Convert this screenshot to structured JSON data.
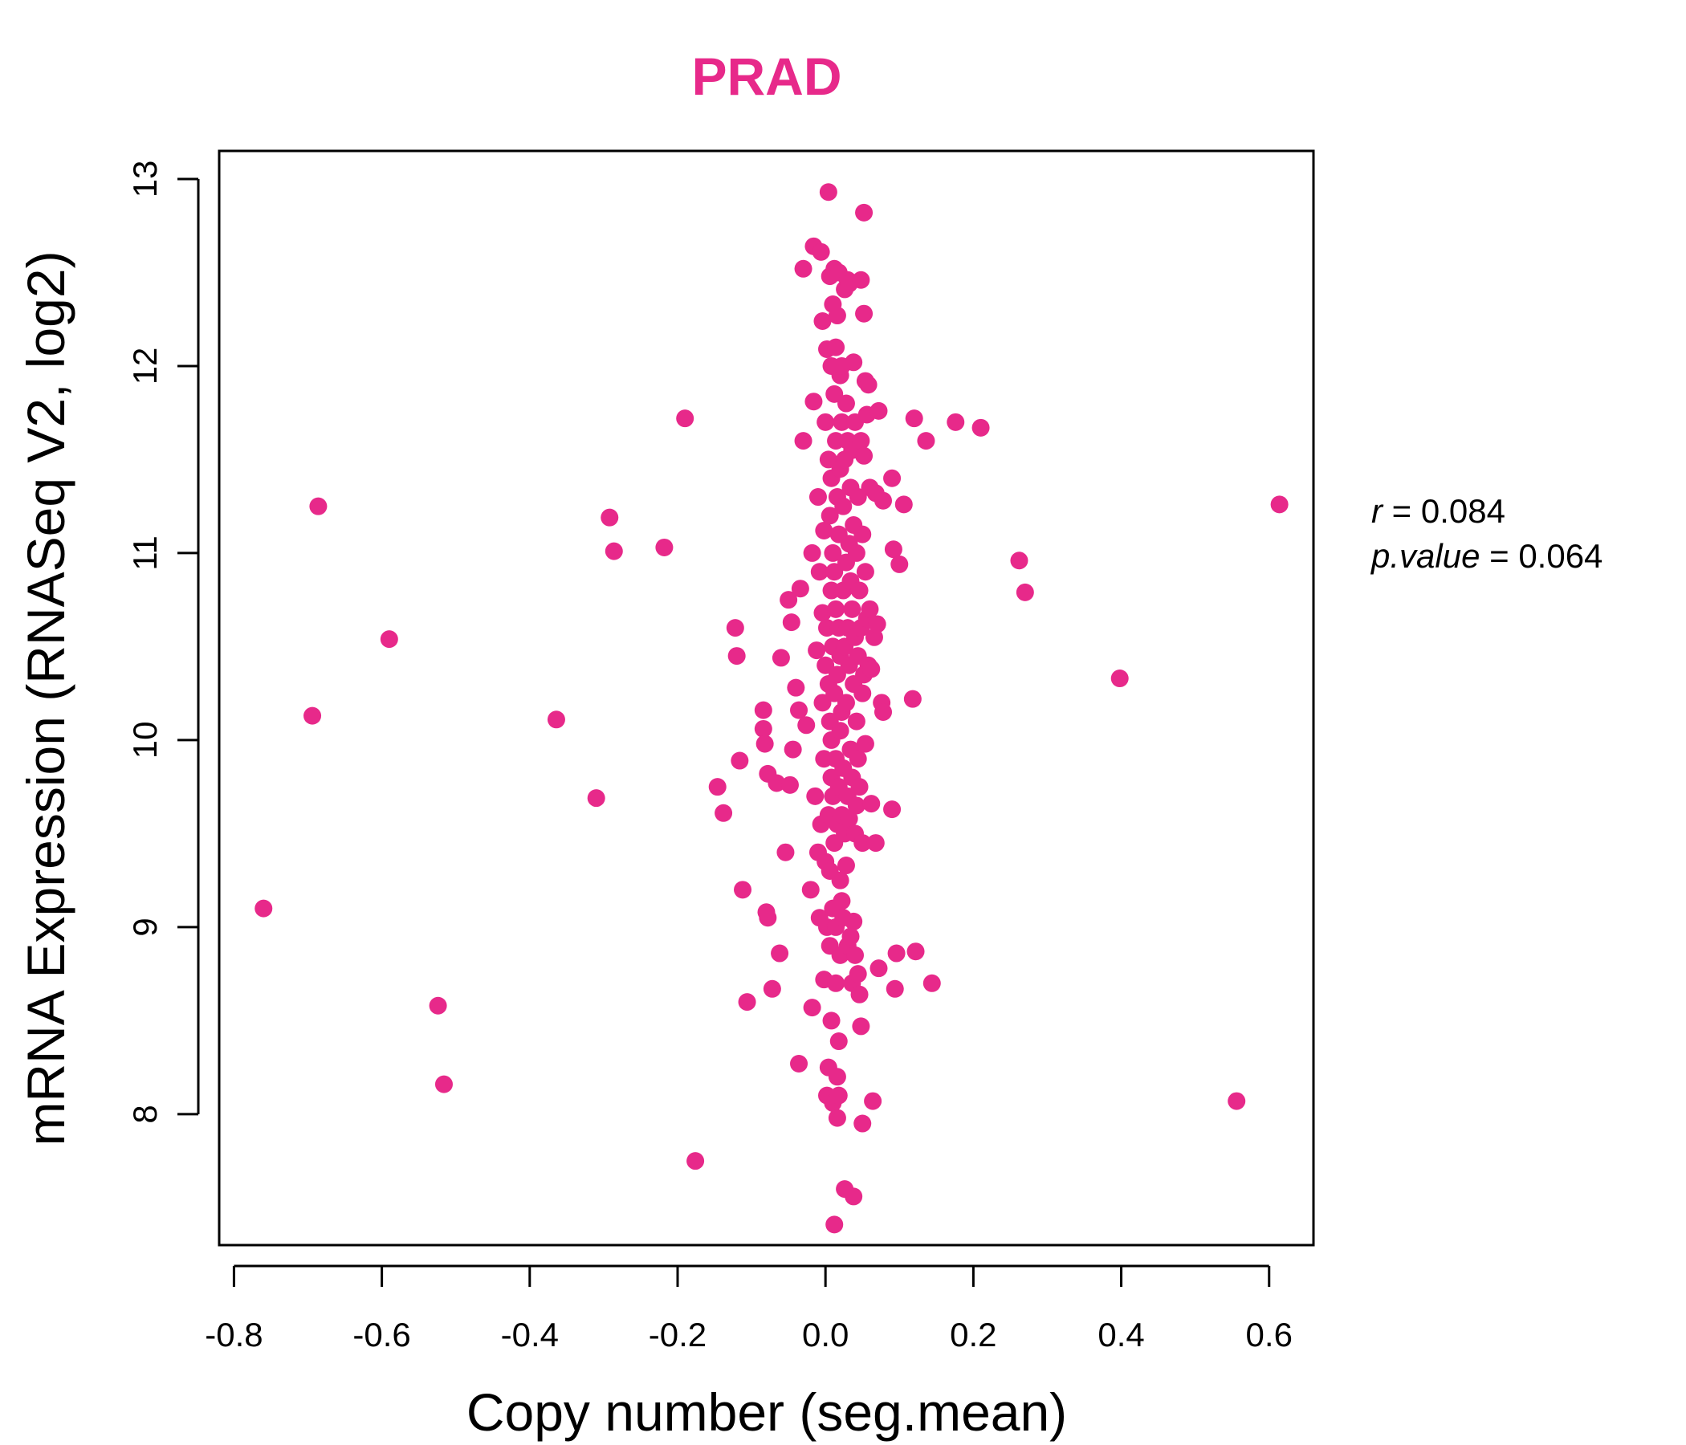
{
  "chart_data": {
    "type": "scatter",
    "title": "PRAD",
    "xlabel": "Copy number (seg.mean)",
    "ylabel": "mRNA Expression (RNASeq V2, log2)",
    "xlim": [
      -0.82,
      0.66
    ],
    "ylim": [
      7.3,
      13.15
    ],
    "xticks": [
      -0.8,
      -0.6,
      -0.4,
      -0.2,
      0.0,
      0.2,
      0.4,
      0.6
    ],
    "xtick_labels": [
      "-0.8",
      "-0.6",
      "-0.4",
      "-0.2",
      "0.0",
      "0.2",
      "0.4",
      "0.6"
    ],
    "yticks": [
      8,
      9,
      10,
      11,
      12,
      13
    ],
    "ytick_labels": [
      "8",
      "9",
      "10",
      "11",
      "12",
      "13"
    ],
    "color": "#e7298a",
    "stats": {
      "r_label": "r",
      "r_value": "0.084",
      "p_label": "p.value",
      "p_value": "0.064"
    },
    "points": [
      [
        -0.76,
        9.1
      ],
      [
        -0.694,
        10.13
      ],
      [
        -0.686,
        11.25
      ],
      [
        -0.59,
        10.54
      ],
      [
        -0.524,
        8.58
      ],
      [
        -0.516,
        8.16
      ],
      [
        -0.364,
        10.11
      ],
      [
        -0.31,
        9.69
      ],
      [
        -0.292,
        11.19
      ],
      [
        -0.286,
        11.01
      ],
      [
        -0.218,
        11.03
      ],
      [
        -0.19,
        11.72
      ],
      [
        -0.176,
        7.75
      ],
      [
        -0.146,
        9.75
      ],
      [
        -0.138,
        9.61
      ],
      [
        -0.122,
        10.6
      ],
      [
        -0.12,
        10.45
      ],
      [
        -0.116,
        9.89
      ],
      [
        -0.112,
        9.2
      ],
      [
        -0.106,
        8.6
      ],
      [
        -0.084,
        10.16
      ],
      [
        -0.084,
        10.06
      ],
      [
        -0.082,
        9.98
      ],
      [
        -0.08,
        9.08
      ],
      [
        -0.078,
        9.05
      ],
      [
        -0.078,
        9.82
      ],
      [
        -0.072,
        8.67
      ],
      [
        -0.066,
        9.77
      ],
      [
        -0.062,
        8.86
      ],
      [
        -0.06,
        10.44
      ],
      [
        -0.054,
        9.4
      ],
      [
        -0.05,
        10.75
      ],
      [
        -0.048,
        9.76
      ],
      [
        -0.046,
        10.63
      ],
      [
        -0.044,
        9.95
      ],
      [
        -0.04,
        10.28
      ],
      [
        -0.036,
        10.16
      ],
      [
        -0.036,
        8.27
      ],
      [
        -0.034,
        10.81
      ],
      [
        -0.03,
        11.6
      ],
      [
        -0.03,
        12.52
      ],
      [
        -0.026,
        10.08
      ],
      [
        -0.02,
        9.2
      ],
      [
        -0.018,
        8.57
      ],
      [
        -0.018,
        11.0
      ],
      [
        -0.016,
        12.64
      ],
      [
        -0.016,
        11.81
      ],
      [
        -0.014,
        9.7
      ],
      [
        -0.012,
        10.48
      ],
      [
        -0.01,
        11.3
      ],
      [
        -0.01,
        9.4
      ],
      [
        -0.008,
        10.9
      ],
      [
        -0.008,
        9.05
      ],
      [
        -0.006,
        12.61
      ],
      [
        -0.006,
        9.55
      ],
      [
        -0.004,
        10.68
      ],
      [
        -0.004,
        12.24
      ],
      [
        -0.004,
        10.2
      ],
      [
        -0.002,
        11.12
      ],
      [
        -0.002,
        9.9
      ],
      [
        -0.002,
        8.72
      ],
      [
        0.0,
        11.7
      ],
      [
        0.0,
        9.35
      ],
      [
        0.0,
        10.4
      ],
      [
        0.002,
        12.09
      ],
      [
        0.002,
        10.6
      ],
      [
        0.002,
        9.0
      ],
      [
        0.002,
        8.1
      ],
      [
        0.004,
        12.93
      ],
      [
        0.004,
        11.5
      ],
      [
        0.004,
        10.3
      ],
      [
        0.004,
        9.6
      ],
      [
        0.004,
        8.25
      ],
      [
        0.006,
        12.48
      ],
      [
        0.006,
        11.2
      ],
      [
        0.006,
        10.1
      ],
      [
        0.006,
        9.3
      ],
      [
        0.006,
        8.9
      ],
      [
        0.008,
        12.0
      ],
      [
        0.008,
        11.4
      ],
      [
        0.008,
        10.8
      ],
      [
        0.008,
        10.0
      ],
      [
        0.008,
        9.8
      ],
      [
        0.008,
        8.5
      ],
      [
        0.01,
        12.33
      ],
      [
        0.01,
        11.0
      ],
      [
        0.01,
        10.5
      ],
      [
        0.01,
        9.7
      ],
      [
        0.01,
        9.1
      ],
      [
        0.01,
        8.06
      ],
      [
        0.012,
        12.52
      ],
      [
        0.012,
        11.85
      ],
      [
        0.012,
        10.9
      ],
      [
        0.012,
        10.25
      ],
      [
        0.012,
        9.45
      ],
      [
        0.012,
        7.41
      ],
      [
        0.014,
        12.1
      ],
      [
        0.014,
        11.6
      ],
      [
        0.014,
        10.7
      ],
      [
        0.014,
        9.9
      ],
      [
        0.014,
        9.0
      ],
      [
        0.014,
        8.7
      ],
      [
        0.016,
        12.27
      ],
      [
        0.016,
        11.3
      ],
      [
        0.016,
        10.35
      ],
      [
        0.016,
        9.55
      ],
      [
        0.016,
        8.2
      ],
      [
        0.016,
        7.98
      ],
      [
        0.018,
        12.5
      ],
      [
        0.018,
        11.1
      ],
      [
        0.018,
        10.6
      ],
      [
        0.018,
        9.75
      ],
      [
        0.018,
        8.39
      ],
      [
        0.018,
        8.1
      ],
      [
        0.02,
        11.95
      ],
      [
        0.02,
        11.45
      ],
      [
        0.02,
        10.45
      ],
      [
        0.02,
        10.05
      ],
      [
        0.02,
        9.25
      ],
      [
        0.02,
        8.85
      ],
      [
        0.022,
        12.0
      ],
      [
        0.022,
        11.7
      ],
      [
        0.022,
        10.15
      ],
      [
        0.022,
        9.6
      ],
      [
        0.022,
        9.14
      ],
      [
        0.024,
        11.25
      ],
      [
        0.024,
        10.8
      ],
      [
        0.024,
        9.85
      ],
      [
        0.024,
        9.05
      ],
      [
        0.026,
        12.41
      ],
      [
        0.026,
        11.5
      ],
      [
        0.026,
        10.5
      ],
      [
        0.026,
        9.5
      ],
      [
        0.026,
        7.6
      ],
      [
        0.028,
        11.8
      ],
      [
        0.028,
        10.95
      ],
      [
        0.028,
        10.2
      ],
      [
        0.028,
        9.33
      ],
      [
        0.03,
        12.46
      ],
      [
        0.03,
        11.6
      ],
      [
        0.03,
        10.6
      ],
      [
        0.03,
        9.7
      ],
      [
        0.03,
        8.9
      ],
      [
        0.032,
        12.44
      ],
      [
        0.032,
        11.05
      ],
      [
        0.032,
        10.4
      ],
      [
        0.032,
        9.58
      ],
      [
        0.034,
        11.35
      ],
      [
        0.034,
        10.85
      ],
      [
        0.034,
        9.95
      ],
      [
        0.034,
        8.95
      ],
      [
        0.036,
        11.55
      ],
      [
        0.036,
        10.7
      ],
      [
        0.036,
        9.8
      ],
      [
        0.036,
        8.7
      ],
      [
        0.038,
        12.02
      ],
      [
        0.038,
        11.15
      ],
      [
        0.038,
        10.3
      ],
      [
        0.038,
        9.03
      ],
      [
        0.038,
        7.56
      ],
      [
        0.04,
        11.7
      ],
      [
        0.04,
        10.55
      ],
      [
        0.04,
        9.5
      ],
      [
        0.04,
        8.85
      ],
      [
        0.042,
        11.0
      ],
      [
        0.042,
        10.1
      ],
      [
        0.042,
        9.65
      ],
      [
        0.044,
        11.3
      ],
      [
        0.044,
        10.45
      ],
      [
        0.044,
        9.9
      ],
      [
        0.044,
        8.75
      ],
      [
        0.046,
        10.8
      ],
      [
        0.046,
        9.75
      ],
      [
        0.046,
        8.64
      ],
      [
        0.048,
        12.46
      ],
      [
        0.048,
        11.6
      ],
      [
        0.048,
        10.6
      ],
      [
        0.048,
        8.47
      ],
      [
        0.05,
        11.1
      ],
      [
        0.05,
        10.25
      ],
      [
        0.05,
        9.45
      ],
      [
        0.05,
        7.95
      ],
      [
        0.052,
        12.82
      ],
      [
        0.052,
        12.28
      ],
      [
        0.052,
        11.52
      ],
      [
        0.052,
        10.35
      ],
      [
        0.054,
        11.92
      ],
      [
        0.054,
        10.9
      ],
      [
        0.054,
        9.98
      ],
      [
        0.056,
        11.74
      ],
      [
        0.056,
        10.65
      ],
      [
        0.058,
        11.9
      ],
      [
        0.058,
        10.4
      ],
      [
        0.06,
        11.35
      ],
      [
        0.06,
        10.7
      ],
      [
        0.062,
        10.38
      ],
      [
        0.062,
        9.66
      ],
      [
        0.064,
        8.07
      ],
      [
        0.066,
        10.55
      ],
      [
        0.068,
        11.32
      ],
      [
        0.068,
        9.45
      ],
      [
        0.07,
        10.62
      ],
      [
        0.072,
        11.76
      ],
      [
        0.072,
        8.78
      ],
      [
        0.076,
        10.2
      ],
      [
        0.078,
        11.28
      ],
      [
        0.078,
        10.15
      ],
      [
        0.09,
        11.4
      ],
      [
        0.09,
        9.63
      ],
      [
        0.092,
        11.02
      ],
      [
        0.094,
        8.67
      ],
      [
        0.096,
        8.86
      ],
      [
        0.1,
        10.94
      ],
      [
        0.106,
        11.26
      ],
      [
        0.118,
        10.22
      ],
      [
        0.12,
        11.72
      ],
      [
        0.122,
        8.87
      ],
      [
        0.136,
        11.6
      ],
      [
        0.144,
        8.7
      ],
      [
        0.176,
        11.7
      ],
      [
        0.21,
        11.67
      ],
      [
        0.262,
        10.96
      ],
      [
        0.27,
        10.79
      ],
      [
        0.398,
        10.33
      ],
      [
        0.556,
        8.07
      ],
      [
        0.614,
        11.26
      ]
    ]
  }
}
